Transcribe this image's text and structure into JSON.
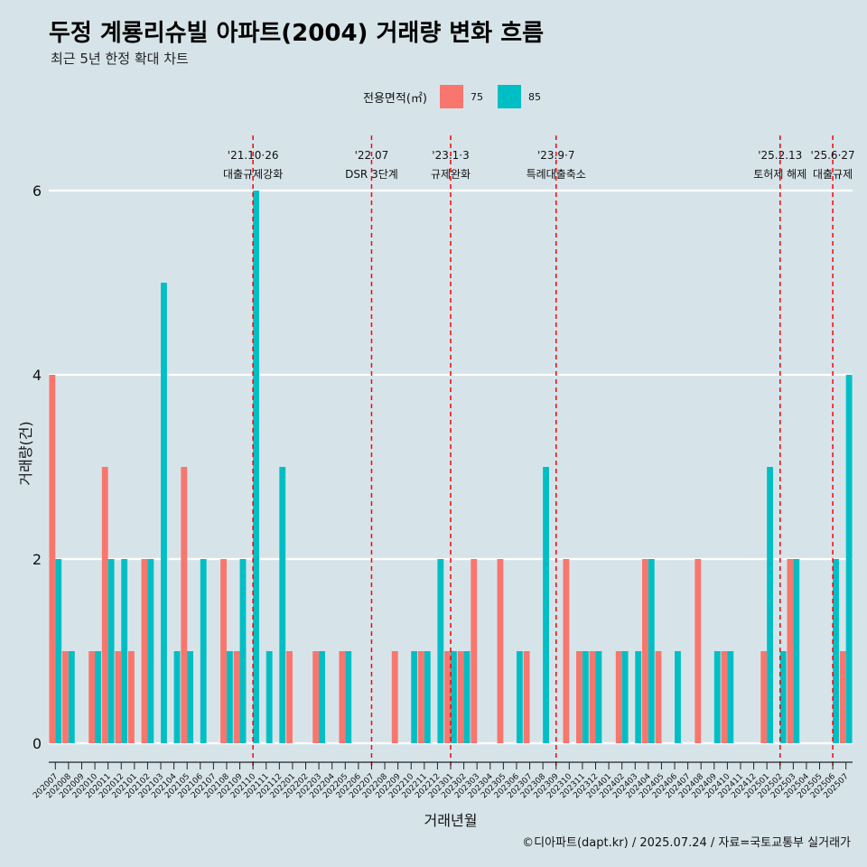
{
  "title": "두정 계룡리슈빌 아파트(2004) 거래량 변화 흐름",
  "subtitle": "최근 5년 한정 확대 차트",
  "caption": "©디아파트(dapt.kr) / 2025.07.24 / 자료=국토교통부 실거래가",
  "legend": {
    "title": "전용면적(㎡)",
    "items": [
      {
        "label": "75",
        "color": "#f8766d"
      },
      {
        "label": "85",
        "color": "#00bfc4"
      }
    ]
  },
  "chart_data": {
    "type": "bar",
    "title": "두정 계룡리슈빌 아파트(2004) 거래량 변화 흐름",
    "xlabel": "거래년월",
    "ylabel": "거래량(건)",
    "ylim": [
      0,
      6
    ],
    "yticks": [
      0,
      2,
      4,
      6
    ],
    "categories": [
      "202007",
      "202008",
      "202009",
      "202010",
      "202011",
      "202012",
      "202101",
      "202102",
      "202103",
      "202104",
      "202105",
      "202106",
      "202107",
      "202108",
      "202109",
      "202110",
      "202111",
      "202112",
      "202201",
      "202202",
      "202203",
      "202204",
      "202205",
      "202206",
      "202207",
      "202208",
      "202209",
      "202210",
      "202211",
      "202212",
      "202301",
      "202302",
      "202303",
      "202304",
      "202305",
      "202306",
      "202307",
      "202308",
      "202309",
      "202310",
      "202311",
      "202312",
      "202401",
      "202402",
      "202403",
      "202404",
      "202405",
      "202406",
      "202407",
      "202408",
      "202409",
      "202410",
      "202411",
      "202412",
      "202501",
      "202502",
      "202503",
      "202504",
      "202505",
      "202506",
      "202507"
    ],
    "series": [
      {
        "name": "75",
        "color": "#f8766d",
        "values": [
          4,
          1,
          0,
          1,
          3,
          1,
          1,
          2,
          0,
          0,
          3,
          0,
          0,
          2,
          1,
          0,
          0,
          0,
          1,
          0,
          1,
          0,
          1,
          0,
          0,
          0,
          1,
          0,
          1,
          0,
          1,
          1,
          2,
          0,
          2,
          0,
          1,
          0,
          0,
          2,
          1,
          1,
          0,
          1,
          0,
          2,
          1,
          0,
          0,
          2,
          0,
          1,
          0,
          0,
          1,
          0,
          2,
          0,
          0,
          0,
          1
        ]
      },
      {
        "name": "85",
        "color": "#00bfc4",
        "values": [
          2,
          1,
          0,
          1,
          2,
          2,
          0,
          2,
          5,
          1,
          1,
          2,
          0,
          1,
          2,
          6,
          1,
          3,
          0,
          0,
          1,
          0,
          1,
          0,
          0,
          0,
          0,
          1,
          1,
          2,
          1,
          1,
          0,
          0,
          0,
          1,
          0,
          3,
          0,
          0,
          1,
          1,
          0,
          1,
          1,
          2,
          0,
          1,
          0,
          0,
          1,
          1,
          0,
          0,
          3,
          1,
          2,
          0,
          0,
          2,
          4
        ]
      }
    ],
    "events": [
      {
        "date": "'21.10·26",
        "label": "대출규제강화",
        "category": "202110"
      },
      {
        "date": "'22.07",
        "label": "DSR 3단계",
        "category": "202207"
      },
      {
        "date": "'23.1·3",
        "label": "규제완화",
        "category": "202301"
      },
      {
        "date": "'23.9·7",
        "label": "특례대출축소",
        "category": "202309"
      },
      {
        "date": "'25.2.13",
        "label": "토허제 해제",
        "category": "202502"
      },
      {
        "date": "'25.6·27",
        "label": "대출규제",
        "category": "202506"
      }
    ]
  }
}
